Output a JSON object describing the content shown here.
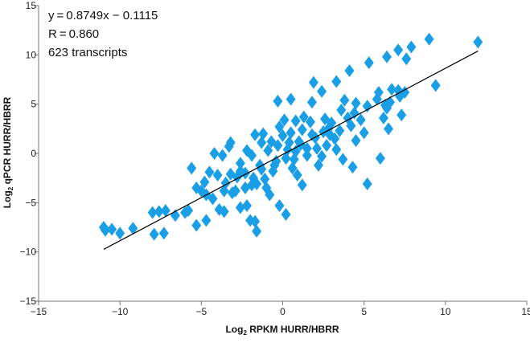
{
  "chart_data": {
    "type": "scatter",
    "xlabel": "Log2 RPKM HURR/HBRR",
    "ylabel": "Log2 qPCR HURR/HBRR",
    "xlabel_parts": {
      "base": "Log",
      "sub": "2",
      "rest": " RPKM HURR/HBRR"
    },
    "ylabel_parts": {
      "base": "Log",
      "sub": "2",
      "rest": " qPCR HURR/HBRR"
    },
    "xlim": [
      -15,
      15
    ],
    "ylim": [
      -15,
      15
    ],
    "xticks": [
      -15,
      -10,
      -5,
      0,
      5,
      10,
      15
    ],
    "yticks": [
      -15,
      -10,
      -5,
      0,
      5,
      10,
      15
    ],
    "xtick_labels": [
      "−15",
      "−10",
      "−5",
      "0",
      "5",
      "10",
      "15"
    ],
    "ytick_labels": [
      "−15",
      "−10",
      "−5",
      "0",
      "5",
      "10",
      "15"
    ],
    "grid": false,
    "marker": "diamond",
    "marker_color": "#1a9fe6",
    "line_color": "#000000",
    "annotations": [
      "y = 0.8749x − 0.1115",
      "R = 0.860",
      "623 transcripts"
    ],
    "fit_line": {
      "slope": 0.8749,
      "intercept": -0.1115,
      "x_range": [
        -11,
        12
      ]
    },
    "points": [
      [
        -11,
        -7.5
      ],
      [
        -10.9,
        -7.8
      ],
      [
        -10.5,
        -7.7
      ],
      [
        -10,
        -8.1
      ],
      [
        -9.2,
        -7.6
      ],
      [
        -7.9,
        -8.2
      ],
      [
        -7.3,
        -8.1
      ],
      [
        -8,
        -6
      ],
      [
        -7.6,
        -5.9
      ],
      [
        -7.2,
        -5.8
      ],
      [
        -6.6,
        -6.3
      ],
      [
        -6,
        -6
      ],
      [
        -5.8,
        -5.8
      ],
      [
        -5.3,
        -7.3
      ],
      [
        -4.7,
        -6.8
      ],
      [
        -5.6,
        -1.5
      ],
      [
        -5.3,
        -3.5
      ],
      [
        -5,
        -3.8
      ],
      [
        -4.8,
        -2.9
      ],
      [
        -4.7,
        -4.2
      ],
      [
        -4.3,
        -4.6
      ],
      [
        -3.9,
        -5.7
      ],
      [
        -3.6,
        -5.9
      ],
      [
        -4,
        -2.2
      ],
      [
        -3.5,
        -3
      ],
      [
        -3.1,
        -4
      ],
      [
        -2.6,
        -5.5
      ],
      [
        -2.2,
        -5.3
      ],
      [
        -2.3,
        -3.5
      ],
      [
        -1.8,
        -2.5
      ],
      [
        -2,
        -6.8
      ],
      [
        -1.7,
        -6.9
      ],
      [
        -1.6,
        -7.9
      ],
      [
        -4.2,
        0
      ],
      [
        -3.7,
        -0.2
      ],
      [
        -3.2,
        1.1
      ],
      [
        -2.6,
        -1
      ],
      [
        -2.3,
        -2
      ],
      [
        -1.9,
        -0.2
      ],
      [
        -1.4,
        -1.2
      ],
      [
        -1,
        -3.5
      ],
      [
        -0.8,
        -4.2
      ],
      [
        -0.2,
        -5.3
      ],
      [
        0.2,
        -6.2
      ],
      [
        -0.6,
        -1.8
      ],
      [
        -0.2,
        2.7
      ],
      [
        -1.2,
        2
      ],
      [
        -0.7,
        1.2
      ],
      [
        -0.3,
        0.8
      ],
      [
        0,
        1.8
      ],
      [
        0.3,
        0.4
      ],
      [
        0.5,
        2.1
      ],
      [
        0.7,
        -0.6
      ],
      [
        1,
        1.2
      ],
      [
        1.2,
        2.4
      ],
      [
        1.5,
        0.5
      ],
      [
        1.7,
        3.2
      ],
      [
        2,
        1.6
      ],
      [
        2.2,
        -1.2
      ],
      [
        2.5,
        2.2
      ],
      [
        2.7,
        0.8
      ],
      [
        3,
        3.1
      ],
      [
        3.2,
        1.5
      ],
      [
        3.5,
        2.3
      ],
      [
        3.7,
        -0.6
      ],
      [
        4,
        3.6
      ],
      [
        4.2,
        2.8
      ],
      [
        4.5,
        1.3
      ],
      [
        3.8,
        5.4
      ],
      [
        4.4,
        4.1
      ],
      [
        0.2,
        -0.5
      ],
      [
        -0.5,
        -1.2
      ],
      [
        0.8,
        0.2
      ],
      [
        1.5,
        -0.2
      ],
      [
        -1.3,
        -1.6
      ],
      [
        -0.9,
        0.3
      ],
      [
        0.4,
        1.1
      ],
      [
        1.1,
        0.9
      ],
      [
        2.1,
        0.5
      ],
      [
        -0.4,
        -0.8
      ],
      [
        0.6,
        -1.5
      ],
      [
        1.8,
        1.9
      ],
      [
        2.8,
        2.5
      ],
      [
        -1.6,
        -3.1
      ],
      [
        -2.8,
        -2.4
      ],
      [
        0.1,
        3.4
      ],
      [
        1.3,
        3.7
      ],
      [
        2.4,
        -0.3
      ],
      [
        3.3,
        0.4
      ],
      [
        -3.2,
        -2.1
      ],
      [
        -0.3,
        5.3
      ],
      [
        0.5,
        5.5
      ],
      [
        1.8,
        5.2
      ],
      [
        2.4,
        6.3
      ],
      [
        4.5,
        5.1
      ],
      [
        -3.3,
        0.7
      ],
      [
        -2.2,
        0.3
      ],
      [
        -1.9,
        -3.2
      ],
      [
        -1.1,
        -2.6
      ],
      [
        0.9,
        -2.2
      ],
      [
        1.2,
        -3.2
      ],
      [
        4.3,
        -1.4
      ],
      [
        5.2,
        -3.1
      ],
      [
        6,
        -0.5
      ],
      [
        2.6,
        3.5
      ],
      [
        3.6,
        4.4
      ],
      [
        4.1,
        8.4
      ],
      [
        5.3,
        9.2
      ],
      [
        3.3,
        7.3
      ],
      [
        1.9,
        7.2
      ],
      [
        5.2,
        4.8
      ],
      [
        5.8,
        5.5
      ],
      [
        6.2,
        3.6
      ],
      [
        6.4,
        4.6
      ],
      [
        7.3,
        3.9
      ],
      [
        7.1,
        6.4
      ],
      [
        6.6,
        5.2
      ],
      [
        7.5,
        6.2
      ],
      [
        7.2,
        5.8
      ],
      [
        6.7,
        6.5
      ],
      [
        6.4,
        9.8
      ],
      [
        7.1,
        10.5
      ],
      [
        7.6,
        9.6
      ],
      [
        7.9,
        10.8
      ],
      [
        9,
        11.6
      ],
      [
        9.4,
        6.9
      ],
      [
        12,
        11.3
      ],
      [
        5.9,
        6.2
      ],
      [
        6.5,
        2.5
      ],
      [
        6.3,
        4.9
      ],
      [
        4.8,
        3.4
      ],
      [
        5,
        2.1
      ],
      [
        -2.6,
        -1.8
      ],
      [
        -1.3,
        1.1
      ],
      [
        0.8,
        3.3
      ],
      [
        2.9,
        1.9
      ],
      [
        -3.6,
        -3.8
      ],
      [
        -4.5,
        -1.9
      ],
      [
        -2.9,
        -3.8
      ],
      [
        -1.7,
        1.9
      ]
    ]
  }
}
